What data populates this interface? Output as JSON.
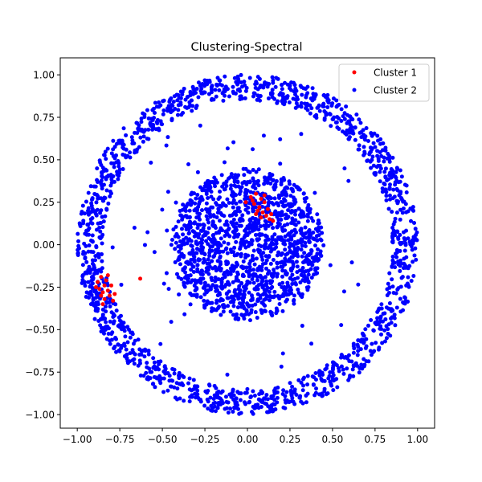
{
  "chart_data": {
    "type": "scatter",
    "title": "Clustering-Spectral",
    "xlabel": "",
    "ylabel": "",
    "xlim": [
      -1.1,
      1.1
    ],
    "ylim": [
      -1.08,
      1.1
    ],
    "xticks": [
      -1.0,
      -0.75,
      -0.5,
      -0.25,
      0.0,
      0.25,
      0.5,
      0.75,
      1.0
    ],
    "xtick_labels": [
      "−1.00",
      "−0.75",
      "−0.50",
      "−0.25",
      "0.00",
      "0.25",
      "0.50",
      "0.75",
      "1.00"
    ],
    "yticks": [
      -1.0,
      -0.75,
      -0.5,
      -0.25,
      0.0,
      0.25,
      0.5,
      0.75,
      1.0
    ],
    "ytick_labels": [
      "−1.00",
      "−0.75",
      "−0.50",
      "−0.25",
      "0.00",
      "0.25",
      "0.50",
      "0.75",
      "1.00"
    ],
    "grid": false,
    "legend_position": "top-right",
    "series": [
      {
        "name": "Cluster 1",
        "color": "#ff0000",
        "points": [
          [
            0.02,
            0.28
          ],
          [
            0.05,
            0.3
          ],
          [
            0.08,
            0.27
          ],
          [
            0.1,
            0.25
          ],
          [
            0.04,
            0.24
          ],
          [
            0.07,
            0.22
          ],
          [
            0.09,
            0.19
          ],
          [
            0.11,
            0.17
          ],
          [
            0.13,
            0.15
          ],
          [
            0.15,
            0.14
          ],
          [
            0.06,
            0.2
          ],
          [
            0.03,
            0.26
          ],
          [
            0.12,
            0.21
          ],
          [
            0.08,
            0.16
          ],
          [
            -0.01,
            0.25
          ],
          [
            0.1,
            0.29
          ],
          [
            0.14,
            0.18
          ],
          [
            0.05,
            0.18
          ],
          [
            -0.88,
            -0.22
          ],
          [
            -0.86,
            -0.19
          ],
          [
            -0.84,
            -0.24
          ],
          [
            -0.82,
            -0.27
          ],
          [
            -0.85,
            -0.28
          ],
          [
            -0.87,
            -0.26
          ],
          [
            -0.83,
            -0.21
          ],
          [
            -0.8,
            -0.24
          ],
          [
            -0.81,
            -0.3
          ],
          [
            -0.84,
            -0.32
          ],
          [
            -0.79,
            -0.33
          ],
          [
            -0.86,
            -0.3
          ],
          [
            -0.89,
            -0.25
          ],
          [
            -0.82,
            -0.18
          ],
          [
            -0.78,
            -0.29
          ],
          [
            -0.85,
            -0.35
          ],
          [
            -0.63,
            -0.2
          ]
        ]
      },
      {
        "name": "Cluster 2",
        "color": "#0000ff",
        "generated": true,
        "structure": "outer ring radius 0.85–1.0, inner disk radius 0.45, sparse scatter between",
        "counts": {
          "outer_ring": 1500,
          "inner_disk": 1400,
          "between": 45
        },
        "seed": 7
      }
    ]
  },
  "legend": {
    "entries": [
      {
        "label": "Cluster 1",
        "color": "#ff0000"
      },
      {
        "label": "Cluster 2",
        "color": "#0000ff"
      }
    ]
  }
}
